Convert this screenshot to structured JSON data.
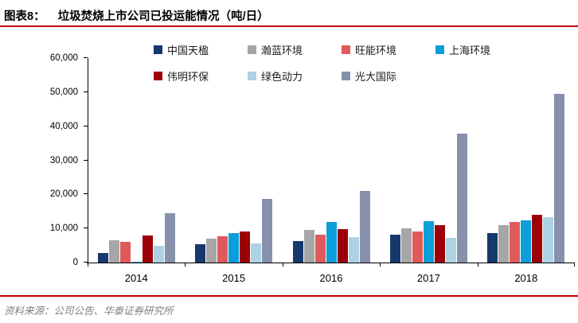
{
  "header": {
    "figure_label": "图表8：",
    "title": "垃圾焚烧上市公司已投运能情况（吨/日）"
  },
  "source": {
    "text": "资料来源：公司公告、华泰证券研究所"
  },
  "colors": {
    "divider_red": "#c00000",
    "axis_black": "#000000",
    "source_gray": "#7f7f7f"
  },
  "chart_data": {
    "type": "bar",
    "title": "垃圾焚烧上市公司已投运能情况（吨/日）",
    "xlabel": "",
    "ylabel": "",
    "categories": [
      "2014",
      "2015",
      "2016",
      "2017",
      "2018"
    ],
    "series": [
      {
        "name": "中国天楹",
        "color": "#16396d",
        "values": [
          2900,
          5400,
          6200,
          8100,
          8700
        ]
      },
      {
        "name": "瀚蓝环境",
        "color": "#a6a6a6",
        "values": [
          6500,
          7100,
          9600,
          10100,
          10900
        ]
      },
      {
        "name": "旺能环境",
        "color": "#e05a5b",
        "values": [
          6000,
          7600,
          8100,
          9200,
          11900
        ]
      },
      {
        "name": "上海环境",
        "color": "#0c9ed9",
        "values": [
          300,
          8600,
          12000,
          12100,
          12400
        ]
      },
      {
        "name": "伟明环保",
        "color": "#9c0006",
        "values": [
          7900,
          9000,
          9900,
          11000,
          14000
        ]
      },
      {
        "name": "绿色动力",
        "color": "#add2e3",
        "values": [
          5000,
          5700,
          7400,
          7300,
          13400
        ]
      },
      {
        "name": "光大国际",
        "color": "#8791ac",
        "values": [
          14400,
          18600,
          21100,
          37800,
          49500
        ]
      }
    ],
    "ylim": [
      0,
      60000
    ],
    "y_tick_values": [
      0,
      10000,
      20000,
      30000,
      40000,
      50000,
      60000
    ],
    "y_tick_labels": [
      "0",
      "10,000",
      "20,000",
      "30,000",
      "40,000",
      "50,000",
      "60,000"
    ],
    "legend_rows": [
      [
        0,
        1,
        2,
        3
      ],
      [
        4,
        5,
        6
      ]
    ],
    "legend_position": "top",
    "grid": false
  }
}
